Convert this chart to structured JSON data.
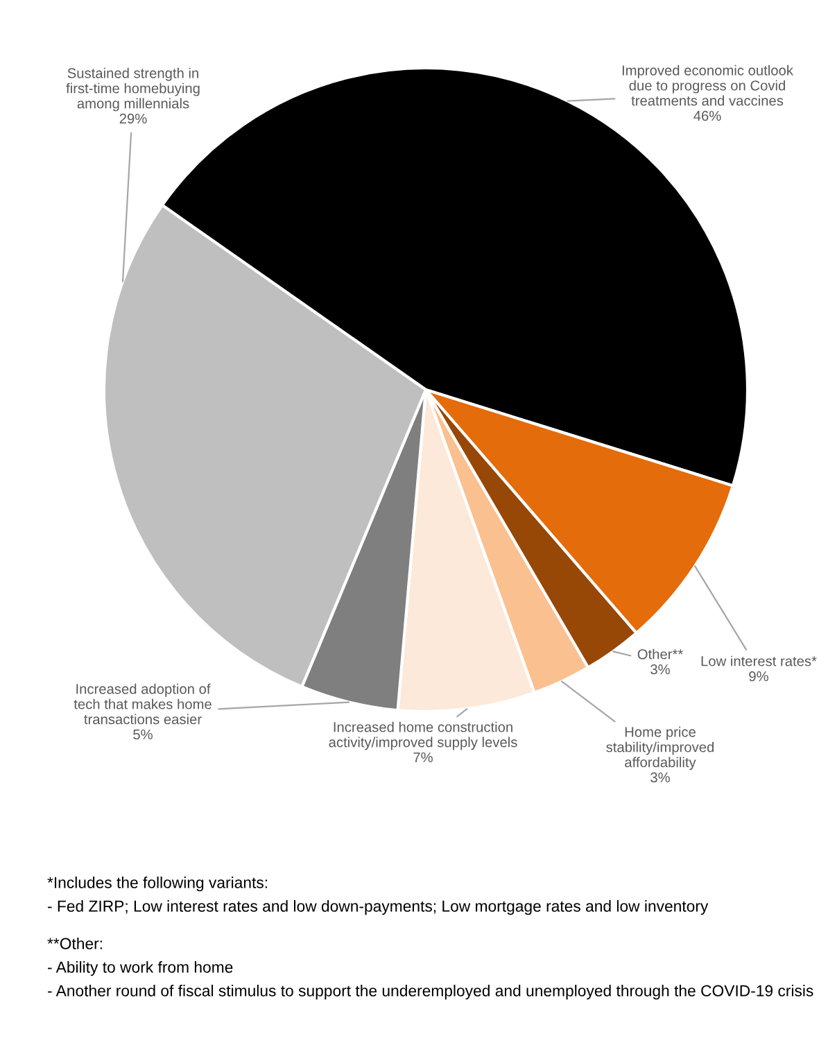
{
  "chart_data": {
    "type": "pie",
    "categories": [
      "Improved economic outlook due to progress on Covid treatments and vaccines",
      "Low interest rates*",
      "Other**",
      "Home price stability/improved affordability",
      "Increased home construction activity/improved supply levels",
      "Increased adoption of tech that makes home transactions easier",
      "Sustained strength in first-time homebuying among millennials"
    ],
    "values": [
      46,
      9,
      3,
      3,
      7,
      5,
      29
    ],
    "value_labels": [
      "46%",
      "9%",
      "3%",
      "3%",
      "7%",
      "5%",
      "29%"
    ],
    "colors": [
      "#000000",
      "#e46c0a",
      "#974706",
      "#fac090",
      "#fde9d9",
      "#7f7f7f",
      "#bfbfbf"
    ],
    "annotations": [
      "*Includes the following variants:",
      "- Fed ZIRP; Low interest rates and low down-payments; Low mortgage rates and low inventory",
      "**Other:",
      "- Ability to work from home",
      "- Another round of fiscal stimulus to support the underemployed and unemployed through the COVID-19 crisis"
    ]
  }
}
